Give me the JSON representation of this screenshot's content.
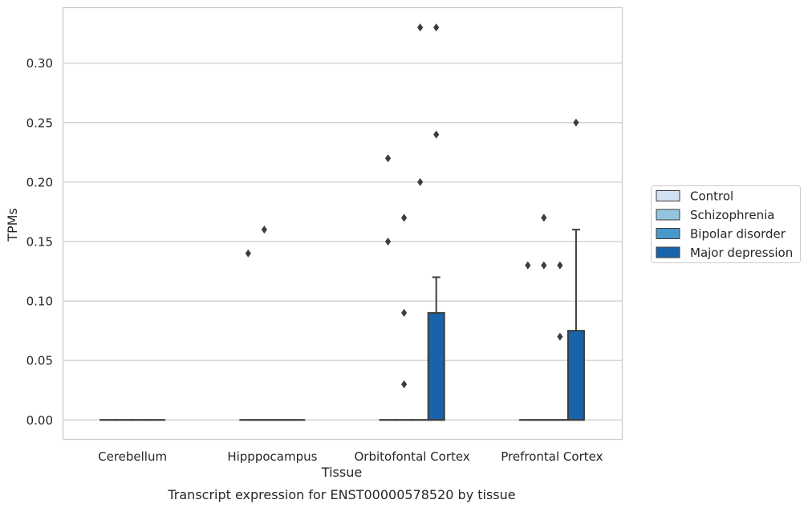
{
  "chart_data": {
    "type": "box",
    "title": "",
    "caption": "Transcript expression for ENST00000578520 by tissue",
    "xlabel": "Tissue",
    "ylabel": "TPMs",
    "ylim": [
      -0.016,
      0.347
    ],
    "yticks": [
      0.0,
      0.05,
      0.1,
      0.15,
      0.2,
      0.25,
      0.3
    ],
    "ytick_labels": [
      "0.00",
      "0.05",
      "0.10",
      "0.15",
      "0.20",
      "0.25",
      "0.30"
    ],
    "categories": [
      "Cerebellum",
      "Hipppocampus",
      "Orbitofontal Cortex",
      "Prefrontal Cortex"
    ],
    "grid": "horizontal",
    "legend_position": "right",
    "series": [
      {
        "name": "Control",
        "color": "#d0e1f2",
        "boxes": [
          {
            "q1": 0,
            "median": 0,
            "q3": 0,
            "whisker_low": 0,
            "whisker_high": 0,
            "outliers": []
          },
          {
            "q1": 0,
            "median": 0,
            "q3": 0,
            "whisker_low": 0,
            "whisker_high": 0,
            "outliers": [
              0.14
            ]
          },
          {
            "q1": 0,
            "median": 0,
            "q3": 0,
            "whisker_low": 0,
            "whisker_high": 0,
            "outliers": [
              0.22,
              0.15
            ]
          },
          {
            "q1": 0,
            "median": 0,
            "q3": 0,
            "whisker_low": 0,
            "whisker_high": 0,
            "outliers": [
              0.13
            ]
          }
        ]
      },
      {
        "name": "Schizophrenia",
        "color": "#94c4df",
        "boxes": [
          {
            "q1": 0,
            "median": 0,
            "q3": 0,
            "whisker_low": 0,
            "whisker_high": 0,
            "outliers": []
          },
          {
            "q1": 0,
            "median": 0,
            "q3": 0,
            "whisker_low": 0,
            "whisker_high": 0,
            "outliers": [
              0.16
            ]
          },
          {
            "q1": 0,
            "median": 0,
            "q3": 0,
            "whisker_low": 0,
            "whisker_high": 0,
            "outliers": [
              0.17,
              0.09,
              0.03
            ]
          },
          {
            "q1": 0,
            "median": 0,
            "q3": 0,
            "whisker_low": 0,
            "whisker_high": 0,
            "outliers": [
              0.17,
              0.13
            ]
          }
        ]
      },
      {
        "name": "Bipolar disorder",
        "color": "#4a98c9",
        "boxes": [
          {
            "q1": 0,
            "median": 0,
            "q3": 0,
            "whisker_low": 0,
            "whisker_high": 0,
            "outliers": []
          },
          {
            "q1": 0,
            "median": 0,
            "q3": 0,
            "whisker_low": 0,
            "whisker_high": 0,
            "outliers": []
          },
          {
            "q1": 0,
            "median": 0,
            "q3": 0,
            "whisker_low": 0,
            "whisker_high": 0,
            "outliers": [
              0.33,
              0.2
            ]
          },
          {
            "q1": 0,
            "median": 0,
            "q3": 0,
            "whisker_low": 0,
            "whisker_high": 0,
            "outliers": [
              0.13,
              0.07
            ]
          }
        ]
      },
      {
        "name": "Major depression",
        "color": "#1764ab",
        "boxes": [
          {
            "q1": 0,
            "median": 0,
            "q3": 0,
            "whisker_low": 0,
            "whisker_high": 0,
            "outliers": []
          },
          {
            "q1": 0,
            "median": 0,
            "q3": 0,
            "whisker_low": 0,
            "whisker_high": 0,
            "outliers": []
          },
          {
            "q1": 0,
            "median": 0,
            "q3": 0.09,
            "whisker_low": 0,
            "whisker_high": 0.12,
            "outliers": [
              0.33,
              0.24
            ]
          },
          {
            "q1": 0,
            "median": 0,
            "q3": 0.075,
            "whisker_low": 0,
            "whisker_high": 0.16,
            "outliers": [
              0.25
            ]
          }
        ]
      }
    ]
  }
}
